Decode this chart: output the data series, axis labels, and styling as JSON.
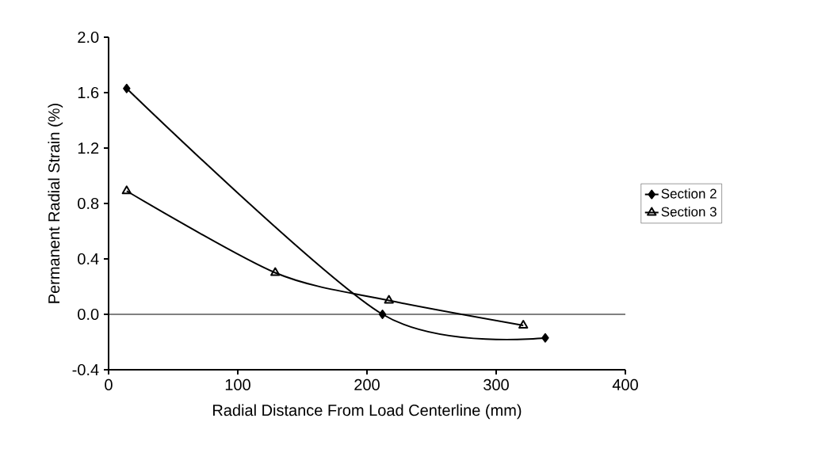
{
  "chart_data": {
    "type": "line",
    "xlabel": "Radial Distance From Load Centerline (mm)",
    "ylabel": "Permanent Radial Strain (%)",
    "series": [
      {
        "name": "Section 2",
        "color": "#000000",
        "marker": "diamond",
        "x": [
          14,
          212,
          338
        ],
        "values": [
          1.63,
          0.0,
          -0.17
        ]
      },
      {
        "name": "Section 3",
        "color": "#000000",
        "marker": "triangle",
        "x": [
          14,
          129,
          217,
          321
        ],
        "values": [
          0.89,
          0.3,
          0.1,
          -0.08
        ]
      }
    ],
    "xlim": [
      0,
      400
    ],
    "xticks": [
      0,
      100,
      200,
      300,
      400
    ],
    "ylim": [
      -0.4,
      2.0
    ],
    "yticks": [
      -0.4,
      {
        "value": 0,
        "label": "0.0"
      },
      0.4,
      0.8,
      1.2,
      1.6,
      {
        "value": 2,
        "label": "2.0"
      }
    ],
    "ref_lines": [
      {
        "axis": "y",
        "value": 0
      }
    ],
    "grid": false,
    "legend": "right",
    "line_style": "solid"
  }
}
